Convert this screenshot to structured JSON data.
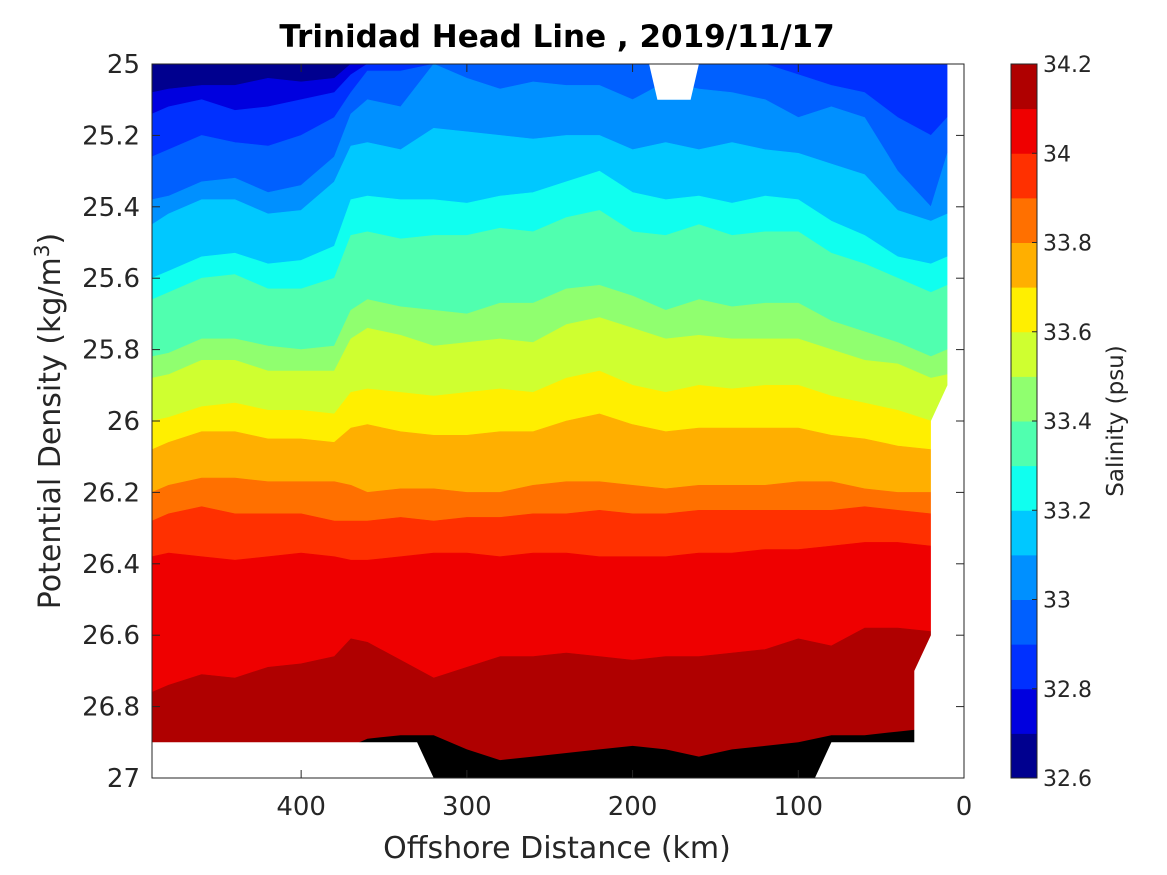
{
  "chart_data": {
    "type": "contour",
    "title": "Trinidad Head Line , 2019/11/17",
    "xlabel": "Offshore Distance (km)",
    "ylabel_text": "Potential Density (kg/m",
    "ylabel_superscript": "3",
    "ylabel_close": ")",
    "xlim": [
      490,
      0
    ],
    "x_reversed": true,
    "ylim": [
      25,
      27
    ],
    "y_reversed": true,
    "x_ticks": [
      400,
      300,
      200,
      100,
      0
    ],
    "x_tick_labels": [
      "400",
      "300",
      "200",
      "100",
      "0"
    ],
    "y_ticks": [
      25,
      25.2,
      25.4,
      25.6,
      25.8,
      26,
      26.2,
      26.4,
      26.6,
      26.8,
      27
    ],
    "y_tick_labels": [
      "25",
      "25.2",
      "25.4",
      "25.6",
      "25.8",
      "26",
      "26.2",
      "26.4",
      "26.6",
      "26.8",
      "27"
    ],
    "grid": false,
    "colorbar": {
      "label": "Salinity (psu)",
      "range": [
        32.6,
        34.2
      ],
      "tick_values": [
        32.6,
        32.8,
        33,
        33.2,
        33.4,
        33.6,
        33.8,
        34,
        34.2
      ],
      "tick_labels": [
        "32.6",
        "32.8",
        "33",
        "33.2",
        "33.4",
        "33.6",
        "33.8",
        "34",
        "34.2"
      ],
      "levels": [
        32.6,
        32.7,
        32.8,
        32.9,
        33.0,
        33.1,
        33.2,
        33.3,
        33.4,
        33.5,
        33.6,
        33.7,
        33.8,
        33.9,
        34.0,
        34.1,
        34.2
      ],
      "colors": [
        "#00008f",
        "#0000df",
        "#0030ff",
        "#0060ff",
        "#0090ff",
        "#00c8ff",
        "#10ffef",
        "#50ffaf",
        "#90ff6f",
        "#cfff30",
        "#ffef00",
        "#ffaf00",
        "#ff7000",
        "#ff3000",
        "#ef0000",
        "#af0000"
      ]
    },
    "x": [
      490,
      480,
      460,
      440,
      420,
      400,
      380,
      370,
      360,
      340,
      320,
      300,
      280,
      260,
      240,
      220,
      200,
      180,
      160,
      140,
      120,
      100,
      80,
      60,
      40,
      20,
      10
    ],
    "contour_boundaries": [
      {
        "level": 32.7,
        "y": [
          25.08,
          25.07,
          25.06,
          25.06,
          25.04,
          25.05,
          25.04,
          25.0,
          25.0,
          25.0,
          25.0,
          25.0,
          25.0,
          25.0,
          25.0,
          25.0,
          25.0,
          25.0,
          25.0,
          25.0,
          25.0,
          25.0,
          25.0,
          25.0,
          25.0,
          25.0,
          25.0
        ]
      },
      {
        "level": 32.8,
        "y": [
          25.14,
          25.12,
          25.1,
          25.13,
          25.12,
          25.1,
          25.08,
          25.03,
          25.0,
          25.0,
          25.0,
          25.0,
          25.0,
          25.0,
          25.0,
          25.0,
          25.0,
          25.0,
          25.0,
          25.0,
          25.0,
          25.0,
          25.0,
          25.0,
          25.0,
          25.0,
          25.0
        ]
      },
      {
        "level": 32.9,
        "y": [
          25.26,
          25.24,
          25.2,
          25.22,
          25.23,
          25.2,
          25.15,
          25.08,
          25.02,
          25.02,
          25.0,
          25.0,
          25.0,
          25.0,
          25.0,
          25.0,
          25.0,
          25.0,
          25.0,
          25.0,
          25.0,
          25.03,
          25.06,
          25.08,
          25.15,
          25.2,
          25.15
        ]
      },
      {
        "level": 33.0,
        "y": [
          25.38,
          25.37,
          25.33,
          25.32,
          25.36,
          25.34,
          25.26,
          25.14,
          25.1,
          25.12,
          25.0,
          25.04,
          25.07,
          25.05,
          25.06,
          25.06,
          25.1,
          25.05,
          25.07,
          25.08,
          25.1,
          25.15,
          25.12,
          25.15,
          25.3,
          25.4,
          25.25
        ]
      },
      {
        "level": 33.1,
        "y": [
          25.45,
          25.42,
          25.38,
          25.38,
          25.42,
          25.41,
          25.33,
          25.23,
          25.22,
          25.24,
          25.18,
          25.19,
          25.2,
          25.21,
          25.2,
          25.2,
          25.24,
          25.22,
          25.24,
          25.22,
          25.24,
          25.25,
          25.28,
          25.31,
          25.41,
          25.44,
          25.42
        ]
      },
      {
        "level": 33.2,
        "y": [
          25.6,
          25.58,
          25.54,
          25.53,
          25.56,
          25.55,
          25.51,
          25.38,
          25.37,
          25.38,
          25.38,
          25.39,
          25.37,
          25.36,
          25.33,
          25.3,
          25.36,
          25.38,
          25.37,
          25.39,
          25.37,
          25.38,
          25.44,
          25.48,
          25.54,
          25.56,
          25.54
        ]
      },
      {
        "level": 33.3,
        "y": [
          25.66,
          25.64,
          25.6,
          25.59,
          25.63,
          25.63,
          25.6,
          25.48,
          25.47,
          25.49,
          25.48,
          25.48,
          25.46,
          25.47,
          25.43,
          25.41,
          25.47,
          25.48,
          25.45,
          25.48,
          25.47,
          25.47,
          25.53,
          25.56,
          25.6,
          25.64,
          25.62
        ]
      },
      {
        "level": 33.4,
        "y": [
          25.82,
          25.81,
          25.77,
          25.77,
          25.79,
          25.8,
          25.79,
          25.69,
          25.66,
          25.68,
          25.69,
          25.7,
          25.67,
          25.67,
          25.63,
          25.62,
          25.65,
          25.69,
          25.66,
          25.68,
          25.67,
          25.67,
          25.72,
          25.75,
          25.78,
          25.82,
          25.8
        ]
      },
      {
        "level": 33.5,
        "y": [
          25.88,
          25.87,
          25.83,
          25.83,
          25.86,
          25.86,
          25.86,
          25.77,
          25.74,
          25.76,
          25.79,
          25.78,
          25.77,
          25.78,
          25.73,
          25.71,
          25.74,
          25.77,
          25.76,
          25.77,
          25.77,
          25.77,
          25.8,
          25.83,
          25.84,
          25.88,
          25.87
        ]
      },
      {
        "level": 33.6,
        "y": [
          26.0,
          25.99,
          25.96,
          25.95,
          25.97,
          25.97,
          25.98,
          25.92,
          25.91,
          25.92,
          25.93,
          25.92,
          25.91,
          25.92,
          25.88,
          25.86,
          25.9,
          25.92,
          25.9,
          25.91,
          25.9,
          25.9,
          25.93,
          25.95,
          25.97,
          26.0,
          26.0
        ]
      },
      {
        "level": 33.7,
        "y": [
          26.08,
          26.06,
          26.03,
          26.03,
          26.05,
          26.05,
          26.06,
          26.02,
          26.01,
          26.03,
          26.04,
          26.04,
          26.03,
          26.03,
          26.0,
          25.98,
          26.01,
          26.03,
          26.02,
          26.02,
          26.02,
          26.02,
          26.04,
          26.05,
          26.07,
          26.08,
          26.08
        ]
      },
      {
        "level": 33.8,
        "y": [
          26.2,
          26.18,
          26.16,
          26.16,
          26.17,
          26.17,
          26.17,
          26.18,
          26.2,
          26.19,
          26.19,
          26.2,
          26.2,
          26.18,
          26.17,
          26.17,
          26.18,
          26.19,
          26.18,
          26.18,
          26.18,
          26.17,
          26.17,
          26.19,
          26.2,
          26.2,
          26.2
        ]
      },
      {
        "level": 33.9,
        "y": [
          26.28,
          26.26,
          26.24,
          26.26,
          26.26,
          26.26,
          26.28,
          26.28,
          26.28,
          26.27,
          26.28,
          26.27,
          26.27,
          26.26,
          26.26,
          26.25,
          26.26,
          26.26,
          26.25,
          26.25,
          26.25,
          26.25,
          26.25,
          26.24,
          26.25,
          26.26,
          26.26
        ]
      },
      {
        "level": 34.0,
        "y": [
          26.38,
          26.37,
          26.38,
          26.39,
          26.38,
          26.37,
          26.38,
          26.39,
          26.39,
          26.38,
          26.37,
          26.37,
          26.38,
          26.37,
          26.37,
          26.38,
          26.38,
          26.38,
          26.37,
          26.37,
          26.36,
          26.36,
          26.35,
          26.34,
          26.34,
          26.35,
          26.35
        ]
      },
      {
        "level": 34.1,
        "y": [
          26.76,
          26.74,
          26.71,
          26.72,
          26.69,
          26.68,
          26.66,
          26.61,
          26.62,
          26.67,
          26.72,
          26.69,
          26.66,
          26.66,
          26.65,
          26.66,
          26.67,
          26.66,
          26.66,
          26.65,
          26.64,
          26.61,
          26.63,
          26.58,
          26.58,
          26.59,
          26.59
        ]
      },
      {
        "level": 34.2,
        "y": [
          26.98,
          26.98,
          26.98,
          26.98,
          26.98,
          26.98,
          26.98,
          26.91,
          26.89,
          26.88,
          26.88,
          26.92,
          26.95,
          26.94,
          26.93,
          26.92,
          26.91,
          26.92,
          26.94,
          26.92,
          26.91,
          26.9,
          26.88,
          26.88,
          26.87,
          26.86,
          26.86
        ]
      }
    ],
    "no_data_regions": [
      [
        [
          490,
          26.9
        ],
        [
          330,
          26.9
        ],
        [
          320,
          27.0
        ],
        [
          490,
          27.0
        ]
      ],
      [
        [
          190,
          25.0
        ],
        [
          160,
          25.0
        ],
        [
          165,
          25.1
        ],
        [
          185,
          25.1
        ]
      ],
      [
        [
          10,
          25.0
        ],
        [
          0,
          25.0
        ],
        [
          0,
          27.0
        ],
        [
          90,
          27.0
        ],
        [
          80,
          26.9
        ],
        [
          30,
          26.9
        ],
        [
          30,
          26.7
        ],
        [
          20,
          26.6
        ],
        [
          20,
          26.0
        ],
        [
          10,
          25.9
        ]
      ]
    ]
  }
}
